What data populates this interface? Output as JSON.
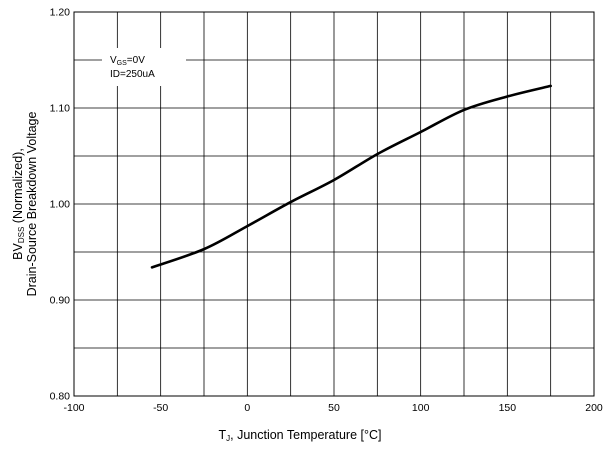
{
  "chart_data": {
    "type": "line",
    "xlabel": {
      "main": "T",
      "sub": "J",
      "rest": ", Junction Temperature [°C]"
    },
    "ylabel": {
      "line1": "Drain-Source Breakdown Voltage",
      "line2_main": "BV",
      "line2_sub": "DSS",
      "line2_rest": " (Normalized),"
    },
    "xlim": [
      -100,
      200
    ],
    "ylim": [
      0.8,
      1.2
    ],
    "x_ticks": [
      -100,
      -50,
      0,
      50,
      100,
      150,
      200
    ],
    "x_tick_labels": [
      "-100",
      "-50",
      "0",
      "50",
      "100",
      "150",
      "200"
    ],
    "y_ticks": [
      0.8,
      0.9,
      1.0,
      1.1,
      1.2
    ],
    "y_tick_labels": [
      "0.80",
      "0.90",
      "1.00",
      "1.10",
      "1.20"
    ],
    "grid": true,
    "annotations": [
      {
        "main": "V",
        "sub": "GS",
        "rest": "=0V"
      },
      {
        "main": "ID=250uA",
        "sub": "",
        "rest": ""
      }
    ],
    "series": [
      {
        "x": [
          -55,
          -25,
          0,
          25,
          50,
          75,
          100,
          125,
          150,
          175
        ],
        "y": [
          0.934,
          0.953,
          0.977,
          1.002,
          1.025,
          1.052,
          1.075,
          1.098,
          1.112,
          1.123
        ]
      }
    ]
  }
}
